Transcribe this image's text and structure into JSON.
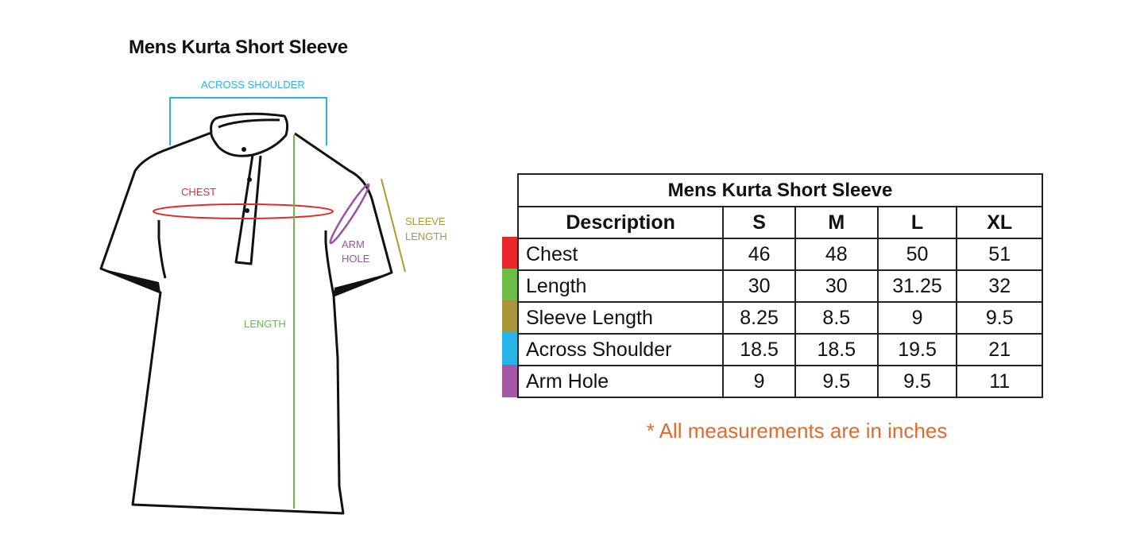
{
  "diagram": {
    "title": "Mens Kurta Short Sleeve",
    "labels": {
      "across_shoulder": "ACROSS SHOULDER",
      "chest": "CHEST",
      "sleeve_length_1": "SLEEVE",
      "sleeve_length_2": "LENGTH",
      "arm_hole_1": "ARM",
      "arm_hole_2": "HOLE",
      "length": "LENGTH"
    },
    "colors": {
      "across_shoulder": "#2bb3e0",
      "chest": "#e02a2a",
      "sleeve_length": "#a89a35",
      "arm_hole": "#a04fa8",
      "length": "#6ab84a"
    }
  },
  "table": {
    "title": "Mens Kurta Short Sleeve",
    "headers": [
      "Description",
      "S",
      "M",
      "L",
      "XL"
    ],
    "rows": [
      {
        "desc": "Chest",
        "values": [
          "46",
          "48",
          "50",
          "51"
        ],
        "color": "#e8262b"
      },
      {
        "desc": "Length",
        "values": [
          "30",
          "30",
          "31.25",
          "32"
        ],
        "color": "#6cbd45"
      },
      {
        "desc": "Sleeve Length",
        "values": [
          "8.25",
          "8.5",
          "9",
          "9.5"
        ],
        "color": "#a8963a"
      },
      {
        "desc": "Across Shoulder",
        "values": [
          "18.5",
          "18.5",
          "19.5",
          "21"
        ],
        "color": "#27b4e6"
      },
      {
        "desc": "Arm Hole",
        "values": [
          "9",
          "9.5",
          "9.5",
          "11"
        ],
        "color": "#a557a6"
      }
    ]
  },
  "note": "* All measurements are in inches"
}
